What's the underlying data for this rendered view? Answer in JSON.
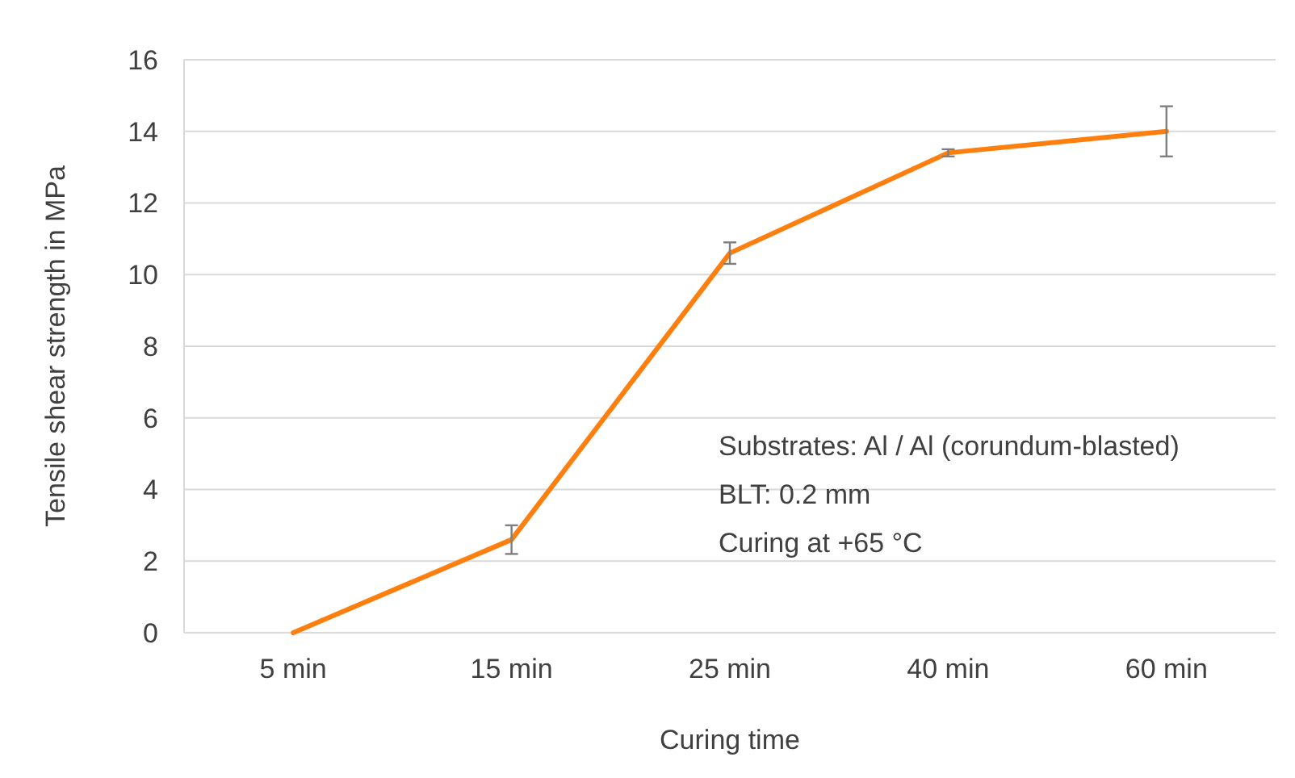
{
  "chart_data": {
    "type": "line",
    "xlabel": "Curing time",
    "ylabel": "Tensile shear strength in MPa",
    "categories": [
      "5 min",
      "15 min",
      "25 min",
      "40 min",
      "60 min"
    ],
    "series": [
      {
        "color": "#ff7f0e",
        "values": [
          0,
          2.6,
          10.6,
          13.4,
          14.0
        ],
        "errors": [
          null,
          0.4,
          0.3,
          0.1,
          0.7
        ]
      }
    ],
    "ylim": [
      0,
      16
    ],
    "yticks": [
      0,
      2,
      4,
      6,
      8,
      10,
      12,
      14,
      16
    ],
    "grid": "y",
    "marker": "none",
    "line_style": "solid",
    "annotations": [
      "Substrates: Al / Al (corundum-blasted)",
      "BLT: 0.2 mm",
      "Curing at +65 °C"
    ]
  }
}
